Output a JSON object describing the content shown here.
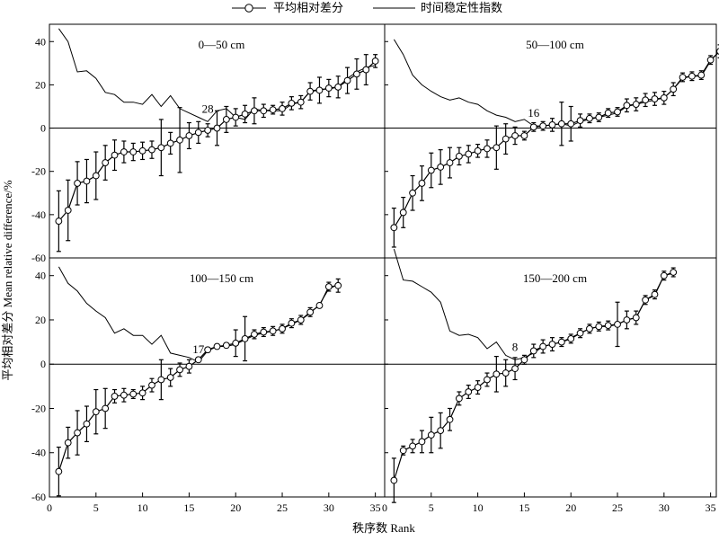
{
  "chart_data": {
    "type": "line",
    "xlabel": "秩序数 Rank",
    "ylabel": "平均相对差分 Mean relative difference/%",
    "xlim": [
      0,
      36
    ],
    "ylim": [
      -60,
      48
    ],
    "x_ticks": [
      0,
      5,
      10,
      15,
      20,
      25,
      30,
      35
    ],
    "y_ticks": [
      -60,
      -40,
      -20,
      0,
      20,
      40
    ],
    "zero_line": true,
    "legend": {
      "position": "top-center",
      "entries": [
        {
          "name": "平均相对差分",
          "marker": "open-circle-line"
        },
        {
          "name": "时间稳定性指数",
          "marker": "line"
        }
      ]
    },
    "panels": [
      {
        "label": "0—50 cm",
        "minimum_rank": 28,
        "mrd": [
          -43,
          -38,
          -25.5,
          -24.5,
          -22,
          -16,
          -12.5,
          -11,
          -11,
          -10.5,
          -10,
          -9,
          -7,
          -5.5,
          -3.5,
          -2,
          -1,
          0,
          4,
          5,
          6.5,
          8,
          8,
          8.5,
          9,
          11.5,
          12,
          17,
          17.5,
          18.5,
          19,
          22,
          25,
          27,
          31
        ],
        "err": [
          14,
          14,
          10,
          10,
          11,
          8,
          7,
          5,
          4,
          4,
          4,
          13,
          5,
          15,
          6,
          5,
          3,
          8,
          6,
          4,
          4,
          6,
          3,
          2,
          3,
          3,
          3,
          4,
          6,
          4,
          5,
          6,
          7,
          7,
          3
        ],
        "tsi": [
          46,
          40,
          26,
          26.5,
          23,
          16.5,
          15.5,
          12,
          12,
          11,
          15.5,
          10,
          15,
          9,
          7,
          5,
          3,
          8,
          9,
          5,
          4,
          9,
          8,
          8,
          8,
          11,
          12,
          17,
          18,
          18,
          19,
          23,
          26,
          28,
          29
        ]
      },
      {
        "label": "50—100 cm",
        "minimum_rank": 16,
        "mrd": [
          -46,
          -39,
          -30,
          -25.5,
          -19.5,
          -18,
          -16,
          -13,
          -12,
          -10.5,
          -9.5,
          -9,
          -5,
          -3.5,
          -3.5,
          0.5,
          1,
          1.5,
          2,
          2,
          3.5,
          4.5,
          5,
          7,
          7.5,
          10.5,
          11,
          13,
          13.5,
          14,
          18,
          23.5,
          24,
          24.5,
          31.5,
          35.5
        ],
        "err": [
          9,
          7,
          8,
          8,
          8,
          8,
          7,
          4,
          4,
          3,
          4,
          10,
          7,
          4,
          2,
          2,
          2,
          3,
          10,
          8,
          3,
          2,
          2,
          2,
          2,
          3,
          3,
          3,
          3,
          3,
          3,
          2,
          2,
          2,
          2,
          3
        ],
        "tsi": [
          41,
          34,
          24.5,
          20,
          17,
          14.5,
          13,
          14,
          12,
          11,
          8,
          6,
          5,
          3,
          4,
          1,
          1,
          1.5,
          2,
          1,
          3,
          4,
          5,
          6,
          7,
          10,
          11,
          12,
          13,
          14,
          18,
          23,
          24,
          24,
          31,
          36
        ]
      },
      {
        "label": "100—150 cm",
        "minimum_rank": 17,
        "mrd": [
          -48.5,
          -35.5,
          -31,
          -27,
          -21.5,
          -20,
          -14.5,
          -14,
          -13.5,
          -13,
          -9.5,
          -7,
          -6,
          -2.5,
          -1,
          2,
          6.5,
          8,
          8.5,
          9.5,
          11.5,
          13.5,
          14.5,
          15,
          16,
          18.5,
          20,
          23.5,
          26.5,
          35,
          35.5
        ],
        "err": [
          11,
          7,
          10,
          8,
          10,
          9,
          3,
          3,
          2,
          3,
          3,
          9,
          4,
          3,
          3,
          1,
          1,
          1,
          1,
          6,
          10,
          2,
          2,
          2,
          2,
          2,
          2,
          2,
          1,
          2,
          3
        ],
        "tsi": [
          44,
          36.5,
          33,
          27.5,
          24,
          21,
          14,
          16,
          13,
          13,
          9,
          13,
          5,
          4,
          3,
          1,
          6,
          8,
          8,
          9,
          11,
          13,
          14,
          15,
          16,
          18,
          20,
          23,
          27,
          34,
          36
        ]
      },
      {
        "label": "150—200 cm",
        "minimum_rank": 8,
        "mrd": [
          -52.5,
          -39,
          -37,
          -35,
          -32,
          -30,
          -25,
          -15.5,
          -12.5,
          -10.5,
          -7,
          -4.5,
          -4,
          -2,
          2,
          6,
          8,
          9,
          10,
          11.5,
          14,
          16,
          17,
          17.5,
          18,
          20,
          21,
          29,
          31.5,
          40,
          41.5
        ],
        "err": [
          10,
          2,
          3,
          5,
          8,
          8,
          5,
          3,
          3,
          3,
          3,
          8,
          6,
          5,
          2,
          3,
          3,
          3,
          2,
          2,
          2,
          2,
          2,
          2,
          10,
          4,
          3,
          2,
          2,
          2,
          2
        ],
        "tsi": [
          52,
          38,
          37.5,
          35,
          32.5,
          28,
          15,
          13,
          13.5,
          12,
          7,
          10,
          4,
          2,
          3,
          5,
          8,
          9,
          10,
          12,
          14,
          16,
          17,
          17,
          18,
          20,
          21,
          29,
          31,
          40,
          41
        ]
      }
    ]
  }
}
